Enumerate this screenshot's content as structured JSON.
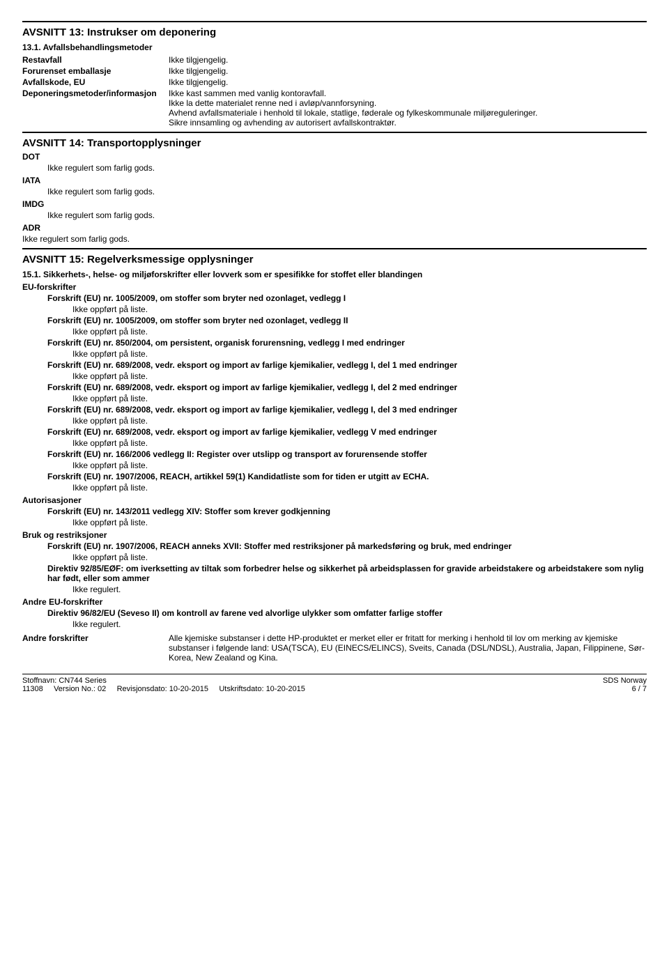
{
  "section13": {
    "title": "AVSNITT 13: Instrukser om deponering",
    "subtitle": "13.1. Avfallsbehandlingsmetoder",
    "rows": [
      {
        "label": "Restavfall",
        "value": "Ikke tilgjengelig."
      },
      {
        "label": "Forurenset emballasje",
        "value": "Ikke tilgjengelig."
      },
      {
        "label": "Avfallskode, EU",
        "value": "Ikke tilgjengelig."
      },
      {
        "label": "Deponeringsmetoder/informasjon",
        "value": "Ikke kast sammen med vanlig kontoravfall.\nIkke la dette materialet renne ned i avløp/vannforsyning.\nAvhend avfallsmateriale i henhold til lokale, statlige, føderale og fylkeskommunale miljøreguleringer.\nSikre innsamling og avhending av autorisert avfallskontraktør."
      }
    ]
  },
  "section14": {
    "title": "AVSNITT 14: Transportopplysninger",
    "groups": [
      {
        "label": "DOT",
        "value": "Ikke regulert som farlig gods."
      },
      {
        "label": "IATA",
        "value": "Ikke regulert som farlig gods."
      },
      {
        "label": "IMDG",
        "value": "Ikke regulert som farlig gods."
      },
      {
        "label": "ADR",
        "value": "Ikke regulert som farlig gods."
      }
    ]
  },
  "section15": {
    "title": "AVSNITT 15: Regelverksmessige opplysninger",
    "subtitle": "15.1. Sikkerhets-, helse- og miljøforskrifter eller lovverk som er spesifikke for stoffet eller blandingen",
    "eu_header": "EU-forskrifter",
    "eu_items": [
      {
        "title": "Forskrift (EU) nr. 1005/2009, om stoffer som bryter ned ozonlaget, vedlegg I",
        "value": "Ikke oppført på liste."
      },
      {
        "title": "Forskrift (EU) nr. 1005/2009, om stoffer som bryter ned ozonlaget, vedlegg II",
        "value": "Ikke oppført på liste."
      },
      {
        "title": "Forskrift (EU) nr. 850/2004, om persistent, organisk forurensning, vedlegg I med endringer",
        "value": "Ikke oppført på liste."
      },
      {
        "title": "Forskrift (EU) nr. 689/2008, vedr. eksport og import av farlige kjemikalier, vedlegg I, del 1 med endringer",
        "value": "Ikke oppført på liste."
      },
      {
        "title": "Forskrift (EU) nr. 689/2008, vedr. eksport og import av farlige kjemikalier, vedlegg I, del 2 med endringer",
        "value": "Ikke oppført på liste."
      },
      {
        "title": "Forskrift (EU) nr. 689/2008, vedr. eksport og import av farlige kjemikalier, vedlegg I, del 3 med endringer",
        "value": "Ikke oppført på liste."
      },
      {
        "title": "Forskrift (EU) nr. 689/2008, vedr. eksport og import av farlige kjemikalier, vedlegg V med endringer",
        "value": "Ikke oppført på liste."
      },
      {
        "title": "Forskrift (EU) nr. 166/2006 vedlegg II: Register over utslipp og transport av forurensende stoffer",
        "value": "Ikke oppført på liste."
      },
      {
        "title": "Forskrift (EU) nr. 1907/2006, REACH, artikkel 59(1) Kandidatliste som for tiden er utgitt av ECHA.",
        "value": "Ikke oppført på liste."
      }
    ],
    "auth_header": "Autorisasjoner",
    "auth_items": [
      {
        "title": "Forskrift (EU) nr. 143/2011 vedlegg XIV: Stoffer som krever godkjenning",
        "value": "Ikke oppført på liste."
      }
    ],
    "restrict_header": "Bruk og restriksjoner",
    "restrict_items": [
      {
        "title": "Forskrift (EU) nr. 1907/2006, REACH anneks XVII: Stoffer med restriksjoner på markedsføring og bruk, med endringer",
        "value": "Ikke oppført på liste."
      },
      {
        "title": "Direktiv 92/85/EØF: om iverksetting av tiltak som forbedrer helse og sikkerhet på arbeidsplassen for gravide arbeidstakere og arbeidstakere som nylig har født, eller som ammer",
        "value": "Ikke regulert."
      }
    ],
    "other_eu_header": "Andre EU-forskrifter",
    "other_eu_items": [
      {
        "title": "Direktiv 96/82/EU (Seveso II) om kontroll av farene ved alvorlige ulykker som omfatter farlige stoffer",
        "value": "Ikke regulert."
      }
    ],
    "andre_label": "Andre forskrifter",
    "andre_value": "Alle kjemiske substanser i dette HP-produktet er merket eller er fritatt for merking i henhold til lov om merking av kjemiske substanser i følgende land:  USA(TSCA), EU (EINECS/ELINCS), Sveits, Canada (DSL/NDSL), Australia, Japan, Filippinene, Sør-Korea, New Zealand og Kina."
  },
  "footer": {
    "left_line1": "Stoffnavn: CN744 Series",
    "left_line2_prefix": "11308",
    "version_label": "Version No.: 02",
    "revdate": "Revisjonsdato: 10-20-2015",
    "printdate": "Utskriftsdato: 10-20-2015",
    "right_line1": "SDS Norway",
    "right_line2": "6 / 7"
  }
}
